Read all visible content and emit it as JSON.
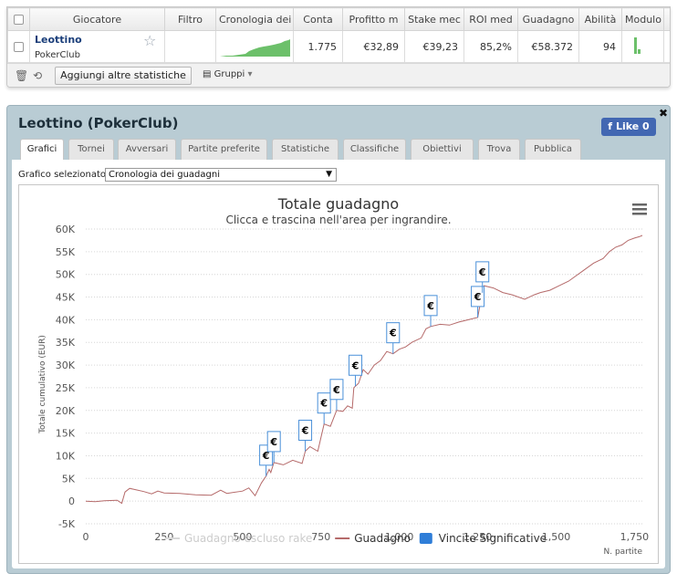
{
  "table": {
    "headers": [
      "Giocatore",
      "Filtro",
      "Cronologia dei g",
      "Conta",
      "Profitto m",
      "Stake mec",
      "ROI med",
      "Guadagno",
      "Abilità",
      "Modulo"
    ],
    "row": {
      "player_name": "Leottino",
      "site": "PokerClub",
      "count": "1.775",
      "avg_profit": "€32,89",
      "avg_stake": "€39,23",
      "avg_roi": "85,2%",
      "winnings": "€58.372",
      "ability": "94",
      "remove": "x"
    }
  },
  "toolbar": {
    "add_stats_label": "Aggiungi altre statistiche",
    "groups_label": "Gruppi"
  },
  "panel": {
    "title": "Leottino (PokerClub)",
    "like_label": "Like 0",
    "close_label": "✖",
    "tabs": [
      "Grafici",
      "Tornei",
      "Avversari",
      "Partite preferite",
      "Statistiche",
      "Classifiche",
      "Obiettivi",
      "Trova",
      "Pubblica"
    ],
    "active_tab": "Grafici",
    "chart_select_label": "Grafico selezionato",
    "chart_select_value": "Cronologia dei guadagni"
  },
  "chart_data": {
    "type": "line",
    "title": "Totale guadagno",
    "subtitle": "Clicca e trascina nell'area per ingrandire.",
    "ylabel": "Totale cumulativo (EUR)",
    "xlabel": "N. partite",
    "xlim": [
      0,
      1775
    ],
    "ylim": [
      -5000,
      60000
    ],
    "x_ticks": [
      "0",
      "250",
      "500",
      "750",
      "1,000",
      "1,250",
      "1,500",
      "1,750"
    ],
    "x_tick_values": [
      0,
      250,
      500,
      750,
      1000,
      1250,
      1500,
      1750
    ],
    "y_ticks": [
      "-5K",
      "0",
      "5K",
      "10K",
      "15K",
      "20K",
      "25K",
      "30K",
      "35K",
      "40K",
      "45K",
      "50K",
      "55K",
      "60K"
    ],
    "y_tick_values": [
      -5000,
      0,
      5000,
      10000,
      15000,
      20000,
      25000,
      30000,
      35000,
      40000,
      45000,
      50000,
      55000,
      60000
    ],
    "grid": true,
    "legend_position": "bottom",
    "legend": [
      {
        "name": "Guadagno escluso rake",
        "color": "#d8d8d8",
        "marker": "line"
      },
      {
        "name": "Guadagno",
        "color": "#b56a6a",
        "marker": "line"
      },
      {
        "name": "Vincite Significative",
        "color": "#2f7ed8",
        "marker": "square"
      }
    ],
    "series": [
      {
        "name": "Guadagno",
        "color": "#b56a6a",
        "points": [
          [
            0,
            0
          ],
          [
            30,
            -100
          ],
          [
            60,
            100
          ],
          [
            100,
            200
          ],
          [
            115,
            -500
          ],
          [
            125,
            2000
          ],
          [
            140,
            2800
          ],
          [
            160,
            2500
          ],
          [
            185,
            2100
          ],
          [
            210,
            1600
          ],
          [
            230,
            2200
          ],
          [
            250,
            1800
          ],
          [
            300,
            1700
          ],
          [
            350,
            1400
          ],
          [
            400,
            1300
          ],
          [
            430,
            2400
          ],
          [
            450,
            1700
          ],
          [
            500,
            2200
          ],
          [
            520,
            2900
          ],
          [
            540,
            1200
          ],
          [
            560,
            4000
          ],
          [
            575,
            5500
          ],
          [
            585,
            7000
          ],
          [
            590,
            6300
          ],
          [
            600,
            8500
          ],
          [
            630,
            8000
          ],
          [
            660,
            9000
          ],
          [
            690,
            8300
          ],
          [
            700,
            11000
          ],
          [
            715,
            12000
          ],
          [
            740,
            11000
          ],
          [
            760,
            17000
          ],
          [
            780,
            16500
          ],
          [
            800,
            20000
          ],
          [
            820,
            19800
          ],
          [
            835,
            21000
          ],
          [
            850,
            20500
          ],
          [
            855,
            25000
          ],
          [
            870,
            26000
          ],
          [
            885,
            29000
          ],
          [
            900,
            28000
          ],
          [
            920,
            30000
          ],
          [
            940,
            31000
          ],
          [
            960,
            33000
          ],
          [
            980,
            32500
          ],
          [
            1000,
            33500
          ],
          [
            1020,
            34000
          ],
          [
            1040,
            35000
          ],
          [
            1070,
            36000
          ],
          [
            1085,
            38000
          ],
          [
            1100,
            38500
          ],
          [
            1130,
            39000
          ],
          [
            1160,
            38800
          ],
          [
            1190,
            39500
          ],
          [
            1220,
            40000
          ],
          [
            1250,
            40500
          ],
          [
            1262,
            45000
          ],
          [
            1270,
            47500
          ],
          [
            1300,
            47000
          ],
          [
            1330,
            46000
          ],
          [
            1360,
            45500
          ],
          [
            1400,
            44500
          ],
          [
            1430,
            45500
          ],
          [
            1450,
            46000
          ],
          [
            1480,
            46500
          ],
          [
            1510,
            47500
          ],
          [
            1540,
            48500
          ],
          [
            1580,
            50500
          ],
          [
            1600,
            51500
          ],
          [
            1620,
            52500
          ],
          [
            1650,
            53500
          ],
          [
            1670,
            55000
          ],
          [
            1690,
            56000
          ],
          [
            1710,
            56500
          ],
          [
            1730,
            57500
          ],
          [
            1750,
            58000
          ],
          [
            1765,
            58300
          ],
          [
            1775,
            58600
          ]
        ]
      }
    ],
    "significant_wins_x": [
      575,
      600,
      700,
      760,
      800,
      860,
      980,
      1100,
      1250,
      1265
    ]
  }
}
